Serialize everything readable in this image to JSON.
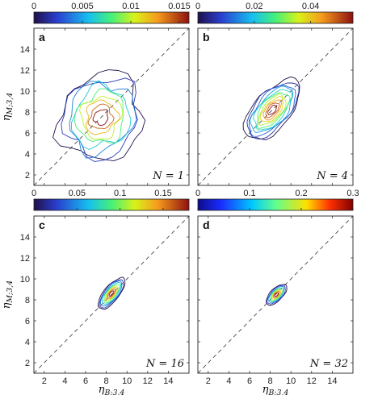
{
  "chart_data": [
    {
      "panel": "a",
      "type": "contour",
      "annotation": "N = 1",
      "colorbar": {
        "ticks": [
          "0",
          "0.005",
          "0.01",
          "0.015"
        ],
        "range": [
          0,
          0.016
        ]
      },
      "xlim": [
        1,
        16
      ],
      "ylim": [
        1,
        16
      ],
      "x_ticks": [],
      "y_ticks": [
        "2",
        "4",
        "6",
        "8",
        "10",
        "12",
        "14"
      ],
      "xlabel": "",
      "ylabel": "η_{M;3,4}",
      "center": [
        7.5,
        7.5
      ],
      "spread": [
        4.0,
        4.2
      ],
      "rho": 0.1,
      "levels": 9,
      "jitter": 0.18,
      "diagonal": true
    },
    {
      "panel": "b",
      "type": "contour",
      "annotation": "N = 4",
      "colorbar": {
        "ticks": [
          "0",
          "0.02",
          "0.04"
        ],
        "range": [
          0,
          0.055
        ]
      },
      "xlim": [
        1,
        16
      ],
      "ylim": [
        1,
        16
      ],
      "x_ticks": [],
      "y_ticks": [],
      "xlabel": "",
      "ylabel": "",
      "center": [
        8.2,
        8.2
      ],
      "spread": [
        2.7,
        2.9
      ],
      "rho": 0.6,
      "levels": 11,
      "jitter": 0.1,
      "diagonal": true
    },
    {
      "panel": "c",
      "type": "contour",
      "annotation": "N = 16",
      "colorbar": {
        "ticks": [
          "0",
          "0.05",
          "0.1",
          "0.15"
        ],
        "range": [
          0,
          0.18
        ]
      },
      "xlim": [
        1,
        16
      ],
      "ylim": [
        1,
        16
      ],
      "x_ticks": [
        "2",
        "4",
        "6",
        "8",
        "10",
        "12",
        "14"
      ],
      "y_ticks": [
        "2",
        "4",
        "6",
        "8",
        "10",
        "12",
        "14"
      ],
      "xlabel": "η_{B;3,4}",
      "ylabel": "η_{M;3,4}",
      "center": [
        8.5,
        8.6
      ],
      "spread": [
        1.3,
        1.5
      ],
      "rho": 0.72,
      "levels": 9,
      "jitter": 0.06,
      "diagonal": true
    },
    {
      "panel": "d",
      "type": "contour",
      "annotation": "N = 32",
      "colorbar": {
        "ticks": [
          "0",
          "0.1",
          "0.2",
          "0.3"
        ],
        "range": [
          0,
          0.3
        ]
      },
      "xlim": [
        1,
        16
      ],
      "ylim": [
        1,
        16
      ],
      "x_ticks": [
        "2",
        "4",
        "6",
        "8",
        "10",
        "12",
        "14"
      ],
      "y_ticks": [],
      "xlabel": "η_{B;3,4}",
      "ylabel": "",
      "center": [
        8.6,
        8.5
      ],
      "spread": [
        1.0,
        1.0
      ],
      "rho": 0.65,
      "levels": 8,
      "jitter": 0.05,
      "diagonal": true
    }
  ]
}
